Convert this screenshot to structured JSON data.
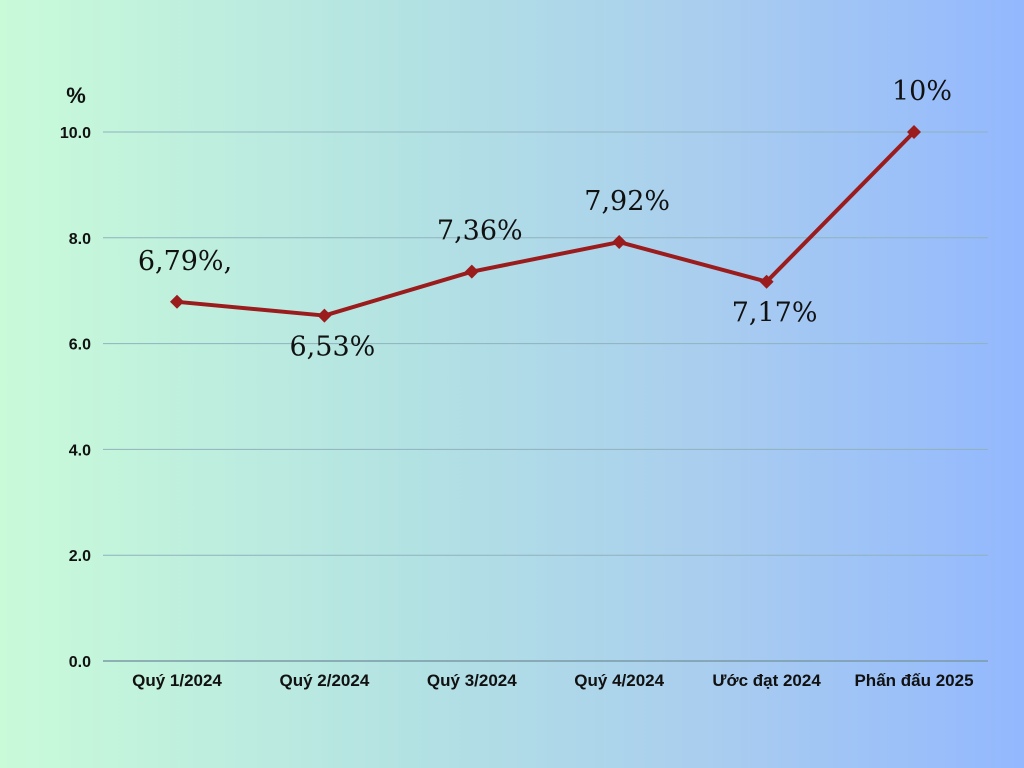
{
  "chart_data": {
    "type": "line",
    "ylabel": "%",
    "ylim": [
      0,
      10
    ],
    "yticks": [
      "0.0",
      "2.0",
      "4.0",
      "6.0",
      "8.0",
      "10.0"
    ],
    "ytick_values": [
      0,
      2,
      4,
      6,
      8,
      10
    ],
    "categories": [
      "Quý 1/2024",
      "Quý 2/2024",
      "Quý 3/2024",
      "Quý 4/2024",
      "Ước đạt 2024",
      "Phấn đấu 2025"
    ],
    "series": [
      {
        "values": [
          6.79,
          6.53,
          7.36,
          7.92,
          7.17,
          10.0
        ],
        "labels": [
          "6,79%,",
          "6,53%",
          "7,36%",
          "7,92%",
          "7,17%",
          "10%"
        ],
        "label_positions": [
          "above",
          "below",
          "above",
          "above",
          "below",
          "above"
        ]
      }
    ],
    "grid": true,
    "legend": "none",
    "colors": {
      "line": "#9b1c1c",
      "marker": "#9b1c1c",
      "grid": "#8fb2bd"
    }
  }
}
